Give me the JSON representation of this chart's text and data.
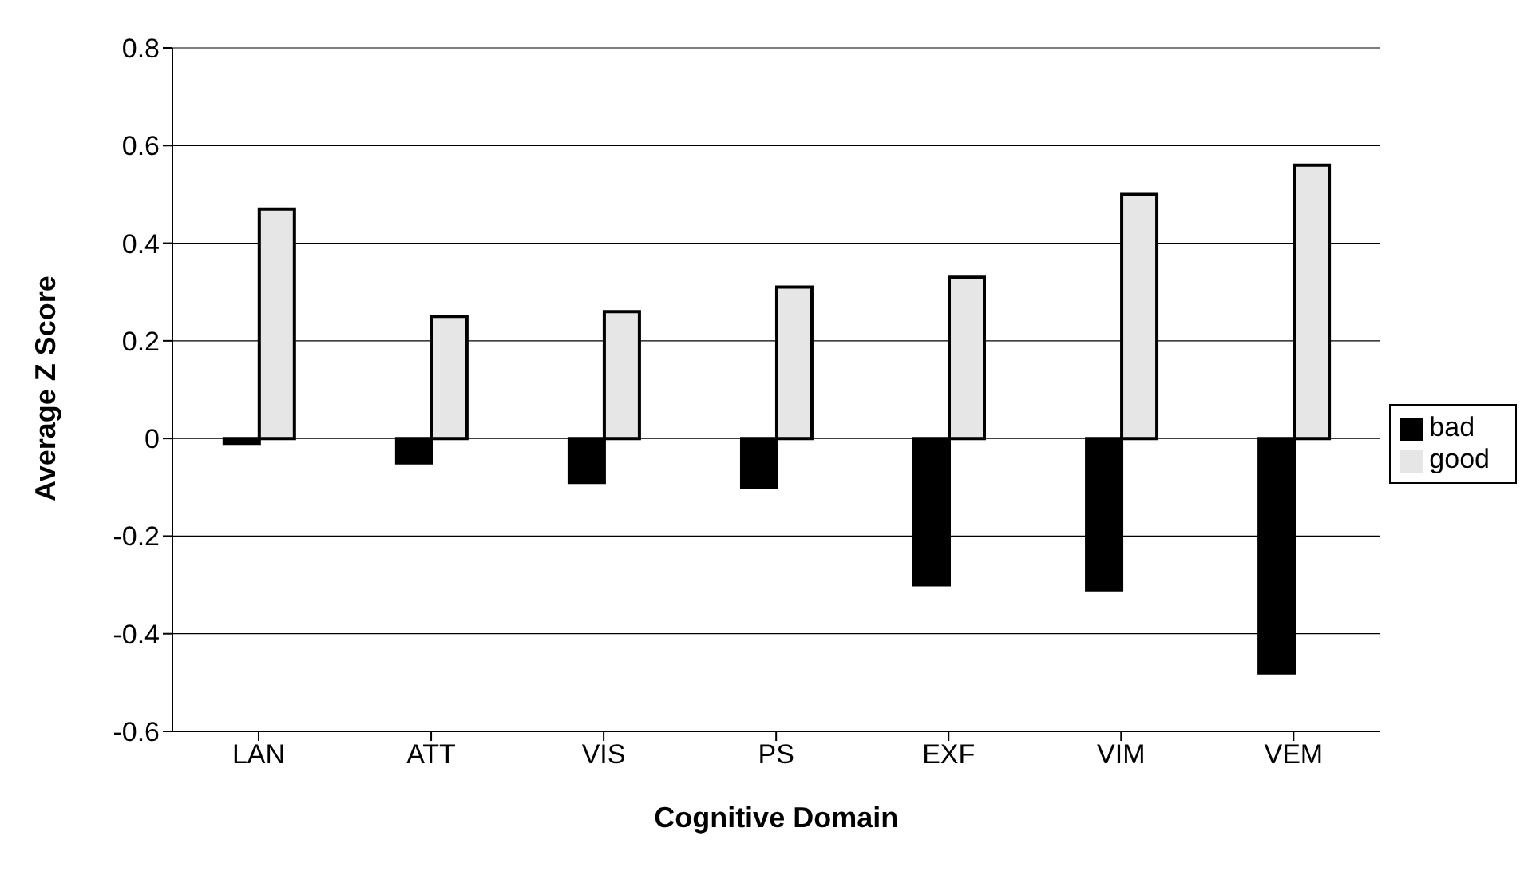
{
  "chart_data": {
    "type": "bar",
    "xlabel": "Cognitive Domain",
    "ylabel": "Average Z Score",
    "categories": [
      "LAN",
      "ATT",
      "VIS",
      "PS",
      "EXF",
      "VIM",
      "VEM"
    ],
    "series": [
      {
        "name": "bad",
        "color": "#000000",
        "values": [
          -0.01,
          -0.05,
          -0.09,
          -0.1,
          -0.3,
          -0.31,
          -0.48
        ]
      },
      {
        "name": "good",
        "color": "#e6e6e6",
        "values": [
          0.47,
          0.25,
          0.26,
          0.31,
          0.33,
          0.5,
          0.56
        ]
      }
    ],
    "ylim": [
      -0.6,
      0.8
    ],
    "yticks": [
      -0.6,
      -0.4,
      -0.2,
      0,
      0.2,
      0.4,
      0.6,
      0.8
    ],
    "grid": "y",
    "legend": "right"
  }
}
